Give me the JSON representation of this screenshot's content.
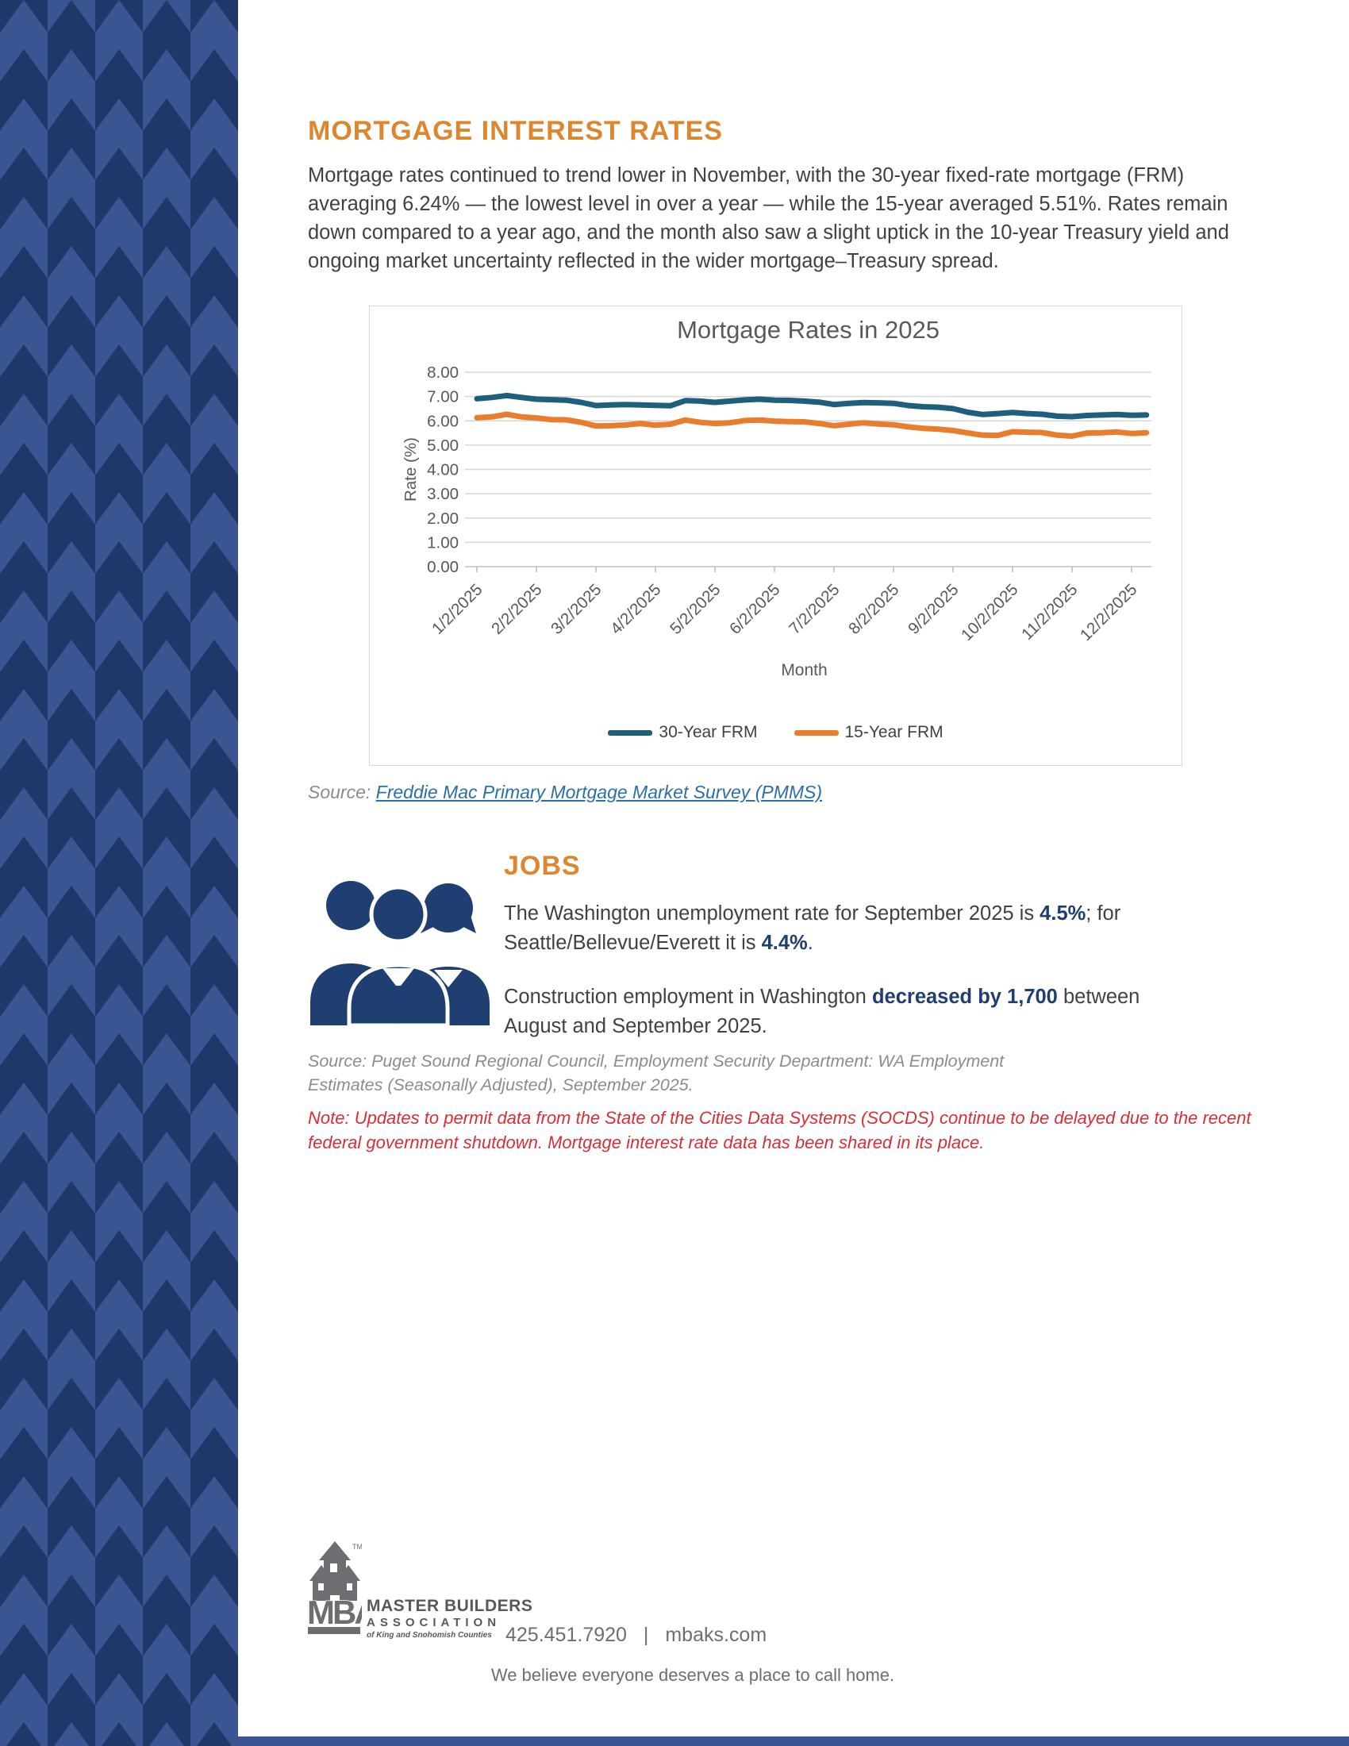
{
  "colors": {
    "accent_orange": "#DD8630",
    "navy": "#1F3E71",
    "sidebar_dark": "#1F3769",
    "sidebar_light": "#3B5492",
    "line_30yr": "#1E5F7E",
    "line_15yr": "#E87D2E",
    "note_red": "#D92E35",
    "link_blue": "#2B6FA6"
  },
  "mortgage": {
    "heading": "MORTGAGE INTEREST RATES",
    "paragraph": "Mortgage rates continued to trend lower in November, with the 30-year fixed-rate mortgage (FRM) averaging 6.24% — the lowest level in over a year — while the 15-year averaged 5.51%. Rates remain down compared to a year ago, and the month also saw a slight uptick in the 10-year Treasury yield and ongoing market uncertainty reflected in the wider mortgage–Treasury spread.",
    "source_label": "Source:",
    "source_link": "Freddie Mac Primary Mortgage Market Survey (PMMS)"
  },
  "chart_data": {
    "type": "line",
    "title": "Mortgage Rates in 2025",
    "xlabel": "Month",
    "ylabel": "Rate (%)",
    "ylim": [
      0,
      8
    ],
    "grid": true,
    "legend_position": "bottom",
    "ytick_labels": [
      "8.00",
      "7.00",
      "6.00",
      "5.00",
      "4.00",
      "3.00",
      "2.00",
      "1.00",
      "0.00"
    ],
    "x_tick_labels": [
      "1/2/2025",
      "2/2/2025",
      "3/2/2025",
      "4/2/2025",
      "5/2/2025",
      "6/2/2025",
      "7/2/2025",
      "8/2/2025",
      "9/2/2025",
      "10/2/2025",
      "11/2/2025",
      "12/2/2025"
    ],
    "points_per_tick": 4,
    "series": [
      {
        "name": "30-Year FRM",
        "color": "#1E5F7E",
        "values": [
          6.91,
          6.96,
          7.04,
          6.96,
          6.89,
          6.87,
          6.85,
          6.76,
          6.63,
          6.65,
          6.67,
          6.65,
          6.64,
          6.62,
          6.83,
          6.81,
          6.76,
          6.81,
          6.86,
          6.89,
          6.85,
          6.84,
          6.81,
          6.77,
          6.67,
          6.72,
          6.75,
          6.74,
          6.72,
          6.63,
          6.58,
          6.56,
          6.5,
          6.35,
          6.26,
          6.3,
          6.34,
          6.3,
          6.27,
          6.19,
          6.17,
          6.22,
          6.24,
          6.26,
          6.23,
          6.24
        ]
      },
      {
        "name": "15-Year FRM",
        "color": "#E87D2E",
        "values": [
          6.13,
          6.16,
          6.27,
          6.16,
          6.12,
          6.05,
          6.04,
          5.94,
          5.79,
          5.8,
          5.83,
          5.89,
          5.82,
          5.86,
          6.03,
          5.94,
          5.89,
          5.92,
          6.01,
          6.03,
          5.99,
          5.97,
          5.96,
          5.89,
          5.8,
          5.86,
          5.92,
          5.87,
          5.84,
          5.75,
          5.69,
          5.66,
          5.6,
          5.5,
          5.41,
          5.4,
          5.55,
          5.53,
          5.52,
          5.41,
          5.37,
          5.5,
          5.51,
          5.54,
          5.48,
          5.51
        ]
      }
    ]
  },
  "jobs": {
    "heading": "JOBS",
    "p1_parts": [
      {
        "t": "The Washington unemployment rate for September 2025 is ",
        "b": false
      },
      {
        "t": "4.5%",
        "b": true
      },
      {
        "t": "; for Seattle/Bellevue/Everett it is ",
        "b": false
      },
      {
        "t": "4.4%",
        "b": true
      },
      {
        "t": ".",
        "b": false
      }
    ],
    "p2_parts": [
      {
        "t": "Construction employment in Washington ",
        "b": false
      },
      {
        "t": "decreased by 1,700",
        "b": true
      },
      {
        "t": " between August and September 2025.",
        "b": false
      }
    ],
    "source": "Source: Puget Sound Regional Council, Employment Security Department: WA Employment Estimates (Seasonally Adjusted), September 2025."
  },
  "note": "Note: Updates to permit data from the State of the Cities Data Systems (SOCDS) continue to be delayed due to the recent federal government shutdown. Mortgage interest rate data has been shared in its place.",
  "footer": {
    "logo_mba": "MBA",
    "logo_tm": "TM",
    "logo_line1": "MASTER BUILDERS",
    "logo_line2": "ASSOCIATION",
    "logo_line3": "of King and Snohomish Counties",
    "phone": "425.451.7920",
    "separator": "|",
    "website": "mbaks.com",
    "tagline": "We believe everyone deserves a place to call home."
  }
}
